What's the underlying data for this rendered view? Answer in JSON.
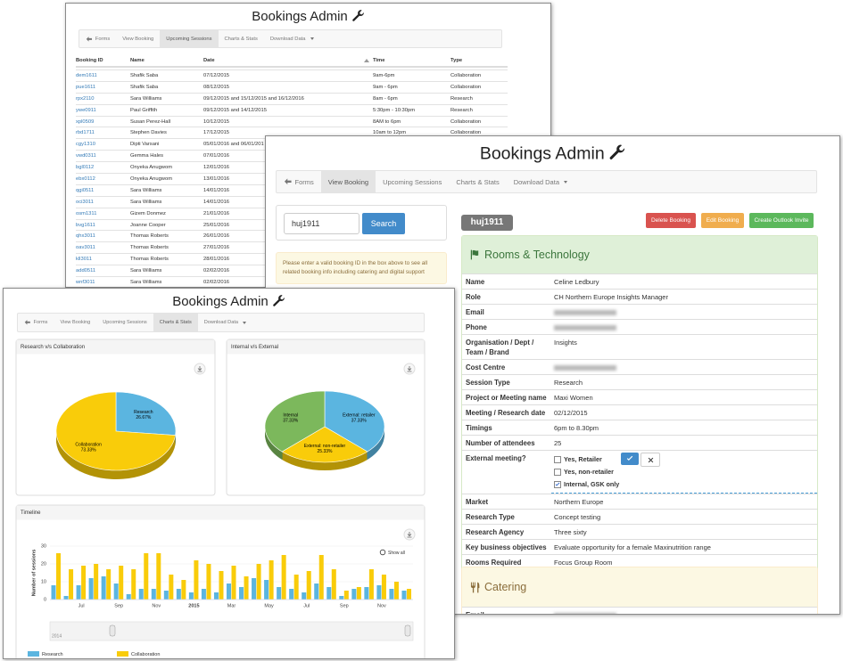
{
  "upcoming_window": {
    "title": "Bookings Admin",
    "nav": {
      "items": [
        "Forms",
        "View Booking",
        "Upcoming Sessions",
        "Charts & Stats",
        "Download Data"
      ],
      "active": 2
    },
    "table": {
      "header": [
        "Booking ID",
        "Name",
        "Date",
        "Time",
        "Type"
      ],
      "rows": [
        [
          "dem1611",
          "Shafik Saba",
          "07/12/2015",
          "9am-6pm",
          "Collaboration"
        ],
        [
          "pue1611",
          "Shafik Saba",
          "08/12/2015",
          "9am - 6pm",
          "Collaboration"
        ],
        [
          "rpx2110",
          "Sara Williams",
          "09/12/2015 and 15/12/2015 and 16/12/2016",
          "8am - 6pm",
          "Research"
        ],
        [
          "ywe0911",
          "Paul Griffith",
          "09/12/2015 and 14/12/2015",
          "5:30pm - 10:30pm",
          "Research"
        ],
        [
          "xpl0509",
          "Susan Perez-Hall",
          "10/12/2015",
          "8AM to 6pm",
          "Collaboration"
        ],
        [
          "rbd1711",
          "Stephen Davies",
          "17/12/2015",
          "10am to 12pm",
          "Collaboration"
        ],
        [
          "cgy1310",
          "Dipti Varsani",
          "05/01/2016 and 06/01/201"
        ],
        [
          "vwd0311",
          "Gemma Hales",
          "07/01/2016"
        ],
        [
          "bgl0112",
          "Onyeka Anugwom",
          "12/01/2016"
        ],
        [
          "ebx0112",
          "Onyeka Anugwom",
          "13/01/2016"
        ],
        [
          "qgi0511",
          "Sara Williams",
          "14/01/2016"
        ],
        [
          "oci3011",
          "Sara Williams",
          "14/01/2016"
        ],
        [
          "osm1311",
          "Gizem Donmez",
          "21/01/2016"
        ],
        [
          "bvg1611",
          "Joanne Cooper",
          "25/01/2016"
        ],
        [
          "qhx3011",
          "Thomas Roberts",
          "26/01/2016"
        ],
        [
          "oav3011",
          "Thomas Roberts",
          "27/01/2016"
        ],
        [
          "kll3011",
          "Thomas Roberts",
          "28/01/2016"
        ],
        [
          "add0511",
          "Sara Williams",
          "02/02/2016"
        ],
        [
          "wnf3011",
          "Sara Williams",
          "02/02/2016"
        ]
      ]
    }
  },
  "detail_window": {
    "title": "Bookings Admin",
    "nav": {
      "items": [
        "Forms",
        "View Booking",
        "Upcoming Sessions",
        "Charts & Stats",
        "Download Data"
      ],
      "active": 1
    },
    "search": {
      "input": "huj1911",
      "button": "Search"
    },
    "notice": "Please enter a valid booking ID in the box above to see all related booking info including catering and digital support",
    "booking_id": "huj1911",
    "actions": [
      "Delete Booking",
      "Edit Booking",
      "Create Outlook Invite"
    ],
    "rooms_panel": {
      "title": "Rooms & Technology",
      "fields": [
        {
          "label": "Name",
          "value": "Celine Ledbury"
        },
        {
          "label": "Role",
          "value": "CH Northern Europe Insights Manager"
        },
        {
          "label": "Email"
        },
        {
          "label": "Phone"
        },
        {
          "label": "Organisation / Dept / Team / Brand",
          "value": "Insights"
        },
        {
          "label": "Cost Centre"
        },
        {
          "label": "Session Type",
          "value": "Research"
        },
        {
          "label": "Project or Meeting name",
          "value": "Maxi Women"
        },
        {
          "label": "Meeting / Research date",
          "value": "02/12/2015"
        },
        {
          "label": "Timings",
          "value": "6pm to 8.30pm"
        },
        {
          "label": "Number of attendees",
          "value": "25"
        },
        {
          "label": "External meeting?",
          "options": [
            {
              "text": "Yes, Retailer",
              "checked": false
            },
            {
              "text": "Yes, non-retailer",
              "checked": false
            },
            {
              "text": "Internal, GSK only",
              "checked": true
            }
          ]
        },
        {
          "label": "Market",
          "value": "Northern Europe"
        },
        {
          "label": "Research Type",
          "value": "Concept testing"
        },
        {
          "label": "Research Agency",
          "value": "Three sixty"
        },
        {
          "label": "Key business objectives",
          "value": "Evaluate opportunity for a female Maxinutrition range"
        },
        {
          "label": "Rooms Required",
          "value": "Focus Group Room"
        }
      ]
    },
    "catering_panel": {
      "title": "Catering",
      "fields": [
        {
          "label": "Email"
        }
      ]
    }
  },
  "charts_window": {
    "title": "Bookings Admin",
    "nav": {
      "items": [
        "Forms",
        "View Booking",
        "Upcoming Sessions",
        "Charts & Stats",
        "Download Data"
      ],
      "active": 3
    }
  },
  "chart_data": [
    {
      "type": "pie",
      "title": "Research v/s Collaboration",
      "categories": [
        "Research",
        "Collaboration"
      ],
      "values": [
        26.67,
        73.33
      ],
      "value_labels": [
        "26.67%",
        "73.33%"
      ],
      "colors": [
        "#5bb5e0",
        "#f9cc0a"
      ]
    },
    {
      "type": "pie",
      "title": "Internal v/s External",
      "categories": [
        "External: retailer",
        "External: non-retailer",
        "Internal"
      ],
      "values": [
        37.33,
        25.33,
        37.33
      ],
      "value_labels": [
        "37.33%",
        "25.33%",
        "37.33%"
      ],
      "colors": [
        "#5bb5e0",
        "#f9cc0a",
        "#7cb85c"
      ]
    },
    {
      "type": "bar",
      "title": "Timeline",
      "y_label": "Number of sessions",
      "categories": [
        null,
        null,
        "Jul",
        null,
        null,
        "Sep",
        null,
        null,
        "Nov",
        null,
        null,
        "2015",
        null,
        null,
        "Mar",
        null,
        null,
        "May",
        null,
        null,
        "Jul",
        null,
        null,
        "Sep",
        null,
        null,
        "Nov",
        null,
        null
      ],
      "series": [
        {
          "name": "Research",
          "color": "#5bb5e0",
          "values": [
            8,
            2,
            8,
            12,
            13,
            9,
            3,
            6,
            6,
            5,
            6,
            4,
            6,
            4,
            9,
            7,
            12,
            11,
            7,
            6,
            4,
            9,
            7,
            2,
            6,
            7,
            8,
            6,
            5
          ]
        },
        {
          "name": "Collaboration",
          "color": "#f9cc0a",
          "values": [
            26,
            17,
            19,
            20,
            17,
            19,
            17,
            26,
            26,
            14,
            11,
            22,
            20,
            16,
            19,
            13,
            20,
            22,
            25,
            14,
            16,
            25,
            17,
            5,
            7,
            17,
            14,
            10,
            6
          ]
        }
      ],
      "ylim": [
        0,
        30
      ],
      "yticks": [
        0,
        10,
        20,
        30
      ],
      "grid": true,
      "show_all": "Show all",
      "navigator_label": "2014"
    }
  ]
}
